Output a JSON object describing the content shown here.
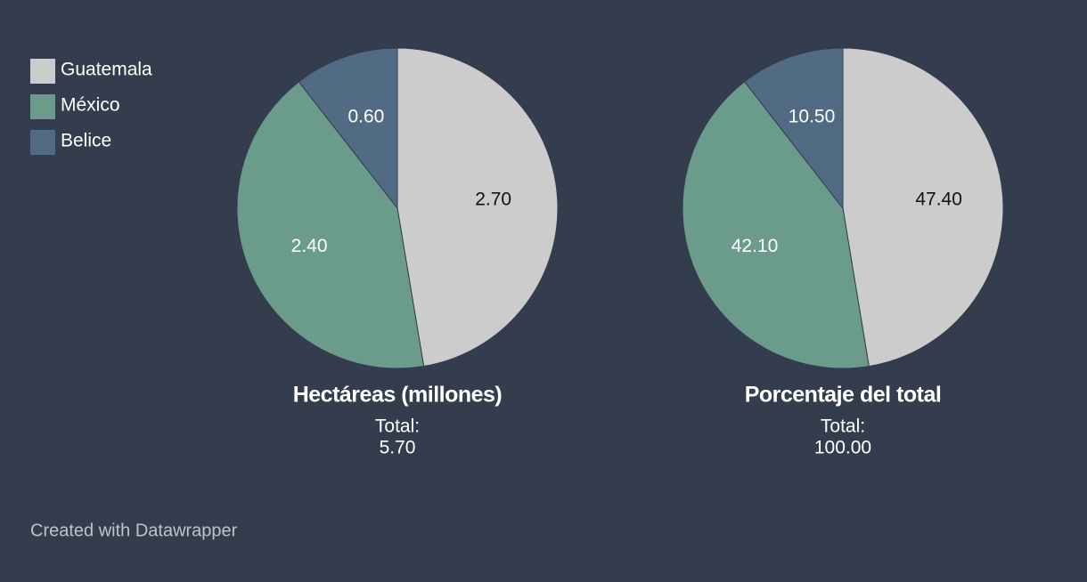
{
  "chart_data": [
    {
      "type": "pie",
      "title": "Hectáreas (millones)",
      "values": [
        2.7,
        2.4,
        0.6
      ],
      "value_labels": [
        "2.70",
        "2.40",
        "0.60"
      ],
      "total_caption": "Total:",
      "total": {
        "value": 5.7,
        "label": "5.70"
      }
    },
    {
      "type": "pie",
      "title": "Porcentaje del total",
      "values": [
        47.4,
        42.1,
        10.5
      ],
      "value_labels": [
        "47.40",
        "42.10",
        "10.50"
      ],
      "total_caption": "Total:",
      "total": {
        "value": 100,
        "label": "100.00"
      }
    }
  ],
  "legend": {
    "labels": [
      "Guatemala",
      "México",
      "Belice"
    ],
    "colors": [
      "#cccccc",
      "#6b9c8b",
      "#526b85"
    ]
  },
  "footer": "Created with Datawrapper"
}
